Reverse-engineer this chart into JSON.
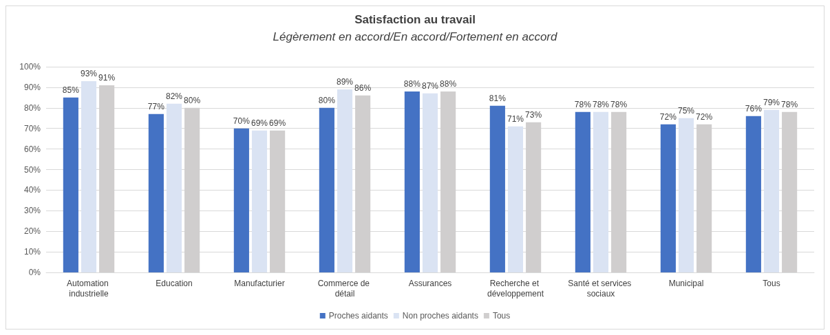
{
  "chart_data": {
    "type": "bar",
    "title": "Satisfaction au travail",
    "subtitle": "Légèrement en accord/En accord/Fortement en accord",
    "categories": [
      "Automation industrielle",
      "Education",
      "Manufacturier",
      "Commerce de détail",
      "Assurances",
      "Recherche et développement",
      "Santé et services sociaux",
      "Municipal",
      "Tous"
    ],
    "series": [
      {
        "name": "Proches aidants",
        "color": "#4472c4",
        "values": [
          85,
          77,
          70,
          80,
          88,
          81,
          78,
          72,
          76
        ],
        "value_labels": [
          "85%",
          "77%",
          "70%",
          "80%",
          "88%",
          "81%",
          "78%",
          "72%",
          "76%"
        ]
      },
      {
        "name": "Non proches aidants",
        "color": "#dae3f3",
        "values": [
          93,
          82,
          69,
          89,
          87,
          71,
          78,
          75,
          79
        ],
        "value_labels": [
          "93%",
          "82%",
          "69%",
          "89%",
          "87%",
          "71%",
          "78%",
          "75%",
          "79%"
        ]
      },
      {
        "name": "Tous",
        "color": "#d0cece",
        "values": [
          91,
          80,
          69,
          86,
          88,
          73,
          78,
          72,
          78
        ],
        "value_labels": [
          "91%",
          "80%",
          "69%",
          "86%",
          "88%",
          "73%",
          "78%",
          "72%",
          "78%"
        ]
      }
    ],
    "ylim": [
      0,
      100
    ],
    "yticks": [
      {
        "value": 0,
        "label": "0%"
      },
      {
        "value": 10,
        "label": "10%"
      },
      {
        "value": 20,
        "label": "20%"
      },
      {
        "value": 30,
        "label": "30%"
      },
      {
        "value": 40,
        "label": "40%"
      },
      {
        "value": 50,
        "label": "50%"
      },
      {
        "value": 60,
        "label": "60%"
      },
      {
        "value": 70,
        "label": "70%"
      },
      {
        "value": 80,
        "label": "80%"
      },
      {
        "value": 90,
        "label": "90%"
      },
      {
        "value": 100,
        "label": "100%"
      }
    ],
    "grid": "y",
    "legend": "bottom"
  }
}
